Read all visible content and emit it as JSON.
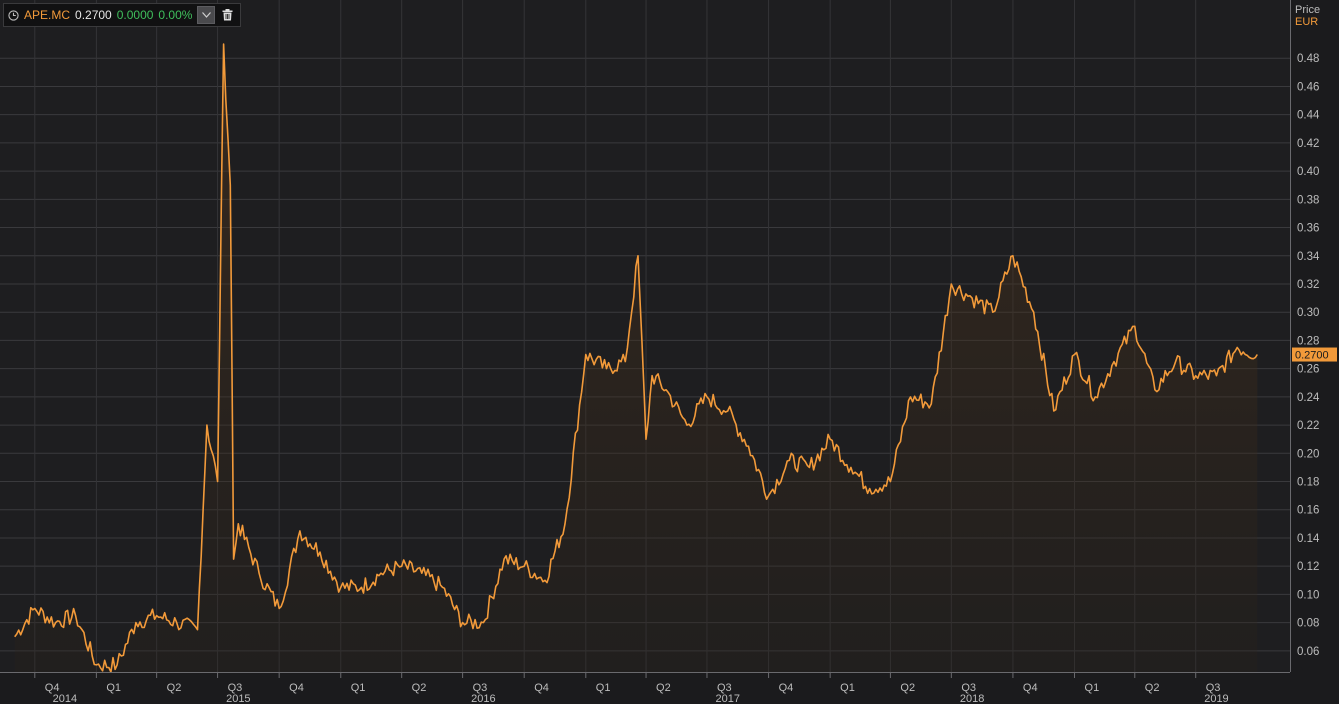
{
  "legend": {
    "symbol": "APE.MC",
    "price": "0.2700",
    "change": "0.0000",
    "change_pct": "0.00%"
  },
  "axis": {
    "title": "Price",
    "currency": "EUR"
  },
  "chart_data": {
    "type": "area",
    "grid": true,
    "line_color": "#f29a3a",
    "last_value_label": "0.2700",
    "ylim": [
      0.045,
      0.5
    ],
    "yticks": [
      "0.06",
      "0.08",
      "0.10",
      "0.12",
      "0.14",
      "0.16",
      "0.18",
      "0.20",
      "0.22",
      "0.24",
      "0.26",
      "0.28",
      "0.30",
      "0.32",
      "0.34",
      "0.36",
      "0.38",
      "0.40",
      "0.42",
      "0.44",
      "0.46",
      "0.48"
    ],
    "quarter_ticks": [
      "Q4",
      "Q1",
      "Q2",
      "Q3",
      "Q4",
      "Q1",
      "Q2",
      "Q3",
      "Q4",
      "Q1",
      "Q2",
      "Q3",
      "Q4",
      "Q1",
      "Q2",
      "Q3",
      "Q4",
      "Q1",
      "Q2",
      "Q3"
    ],
    "year_ticks": [
      "2014",
      "2015",
      "2016",
      "2017",
      "2018",
      "2019"
    ],
    "x": [
      "2014-09",
      "2014-10",
      "2014-11",
      "2014-12",
      "2015-01",
      "2015-02",
      "2015-03",
      "2015-04",
      "2015-05",
      "2015-06",
      "2015-06-15",
      "2015-07",
      "2015-07-10",
      "2015-07-20",
      "2015-07-25",
      "2015-08",
      "2015-09",
      "2015-10",
      "2015-11",
      "2015-12",
      "2016-01",
      "2016-02",
      "2016-03",
      "2016-04",
      "2016-05",
      "2016-06",
      "2016-07",
      "2016-08",
      "2016-09",
      "2016-10",
      "2016-11",
      "2016-12",
      "2017-01",
      "2017-02",
      "2017-03",
      "2017-03-20",
      "2017-04",
      "2017-04-10",
      "2017-05",
      "2017-06",
      "2017-07",
      "2017-08",
      "2017-09",
      "2017-10",
      "2017-11",
      "2017-12",
      "2018-01",
      "2018-02",
      "2018-03",
      "2018-04",
      "2018-05",
      "2018-06",
      "2018-07",
      "2018-08",
      "2018-09",
      "2018-10",
      "2018-11",
      "2018-12",
      "2019-01",
      "2019-02",
      "2019-03",
      "2019-04",
      "2019-05",
      "2019-06",
      "2019-07",
      "2019-08",
      "2019-09",
      "2019-10"
    ],
    "values": [
      0.07,
      0.09,
      0.08,
      0.085,
      0.05,
      0.05,
      0.08,
      0.085,
      0.08,
      0.075,
      0.22,
      0.18,
      0.49,
      0.39,
      0.125,
      0.15,
      0.115,
      0.09,
      0.145,
      0.13,
      0.105,
      0.105,
      0.115,
      0.12,
      0.115,
      0.105,
      0.08,
      0.08,
      0.125,
      0.12,
      0.11,
      0.15,
      0.27,
      0.26,
      0.265,
      0.34,
      0.21,
      0.255,
      0.245,
      0.22,
      0.24,
      0.23,
      0.205,
      0.17,
      0.195,
      0.19,
      0.21,
      0.19,
      0.175,
      0.18,
      0.24,
      0.235,
      0.32,
      0.31,
      0.3,
      0.34,
      0.3,
      0.23,
      0.27,
      0.24,
      0.265,
      0.29,
      0.245,
      0.265,
      0.255,
      0.255,
      0.275,
      0.27
    ]
  }
}
